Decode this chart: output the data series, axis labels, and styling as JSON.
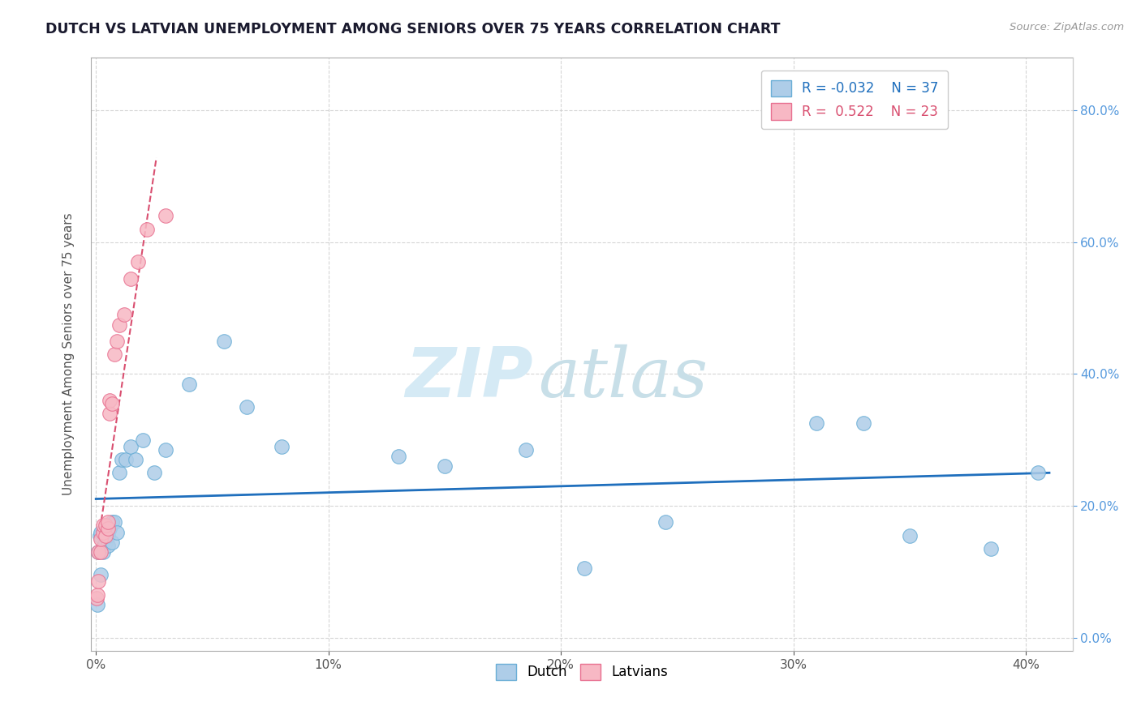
{
  "title": "DUTCH VS LATVIAN UNEMPLOYMENT AMONG SENIORS OVER 75 YEARS CORRELATION CHART",
  "source": "Source: ZipAtlas.com",
  "ylabel": "Unemployment Among Seniors over 75 years",
  "xlim": [
    -0.002,
    0.42
  ],
  "ylim": [
    -0.02,
    0.88
  ],
  "xticks": [
    0.0,
    0.1,
    0.2,
    0.3,
    0.4
  ],
  "yticks": [
    0.0,
    0.2,
    0.4,
    0.6,
    0.8
  ],
  "dutch_x": [
    0.0005,
    0.001,
    0.0015,
    0.002,
    0.002,
    0.003,
    0.003,
    0.004,
    0.005,
    0.005,
    0.006,
    0.007,
    0.007,
    0.008,
    0.009,
    0.01,
    0.011,
    0.013,
    0.015,
    0.017,
    0.02,
    0.025,
    0.03,
    0.04,
    0.055,
    0.065,
    0.08,
    0.13,
    0.15,
    0.185,
    0.21,
    0.245,
    0.31,
    0.33,
    0.35,
    0.385,
    0.405
  ],
  "dutch_y": [
    0.05,
    0.13,
    0.155,
    0.095,
    0.16,
    0.13,
    0.16,
    0.145,
    0.14,
    0.155,
    0.165,
    0.145,
    0.175,
    0.175,
    0.16,
    0.25,
    0.27,
    0.27,
    0.29,
    0.27,
    0.3,
    0.25,
    0.285,
    0.385,
    0.45,
    0.35,
    0.29,
    0.275,
    0.26,
    0.285,
    0.105,
    0.175,
    0.325,
    0.325,
    0.155,
    0.135,
    0.25
  ],
  "latvian_x": [
    0.0003,
    0.0005,
    0.001,
    0.001,
    0.002,
    0.002,
    0.003,
    0.003,
    0.004,
    0.004,
    0.005,
    0.005,
    0.006,
    0.006,
    0.007,
    0.008,
    0.009,
    0.01,
    0.012,
    0.015,
    0.018,
    0.022,
    0.03
  ],
  "latvian_y": [
    0.06,
    0.065,
    0.085,
    0.13,
    0.13,
    0.15,
    0.16,
    0.17,
    0.155,
    0.17,
    0.165,
    0.175,
    0.34,
    0.36,
    0.355,
    0.43,
    0.45,
    0.475,
    0.49,
    0.545,
    0.57,
    0.62,
    0.64
  ],
  "dutch_color": "#aecde8",
  "dutch_edge_color": "#6aaed6",
  "latvian_color": "#f7b8c4",
  "latvian_edge_color": "#e87090",
  "dutch_R": -0.032,
  "dutch_N": 37,
  "latvian_R": 0.522,
  "latvian_N": 23,
  "trend_dutch_color": "#1f6fbd",
  "trend_latvian_color": "#d94f70",
  "background_color": "#ffffff",
  "grid_color": "#cccccc",
  "watermark_color": "#d5eaf5",
  "title_color": "#1a1a2e",
  "right_ytick_color": "#5599dd"
}
